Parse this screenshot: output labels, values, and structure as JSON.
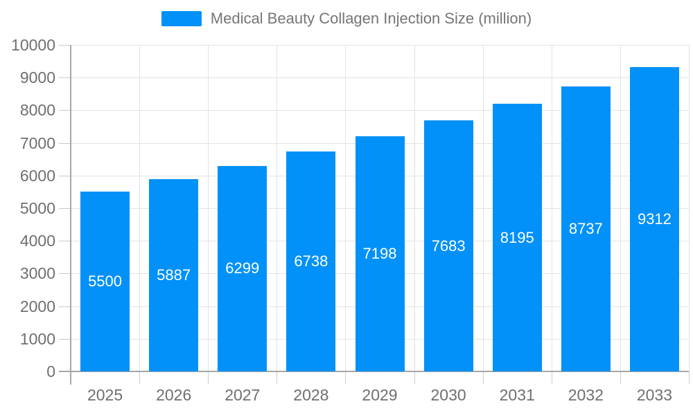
{
  "legend": {
    "label": "Medical Beauty Collagen Injection Size (million)"
  },
  "colors": {
    "bar": "#0291f8",
    "grid": "#e3e3e3",
    "axis": "#a6a6a6",
    "axis_tick": "#c9c9c9",
    "axis_label": "#6f6f6f",
    "legend_text": "#757575",
    "value_label": "#ffffff",
    "background": "#ffffff"
  },
  "chart_data": {
    "type": "bar",
    "title": "Medical Beauty Collagen Injection Size (million)",
    "series_name": "Medical Beauty Collagen Injection Size (million)",
    "categories": [
      "2025",
      "2026",
      "2027",
      "2028",
      "2029",
      "2030",
      "2031",
      "2032",
      "2033"
    ],
    "values": [
      5500,
      5887,
      6299,
      6738,
      7198,
      7683,
      8195,
      8737,
      9312
    ],
    "xlabel": "",
    "ylabel": "",
    "ylim": [
      0,
      10000
    ],
    "ytick_step": 1000,
    "ytick_labels": [
      "0",
      "1000",
      "2000",
      "3000",
      "4000",
      "5000",
      "6000",
      "7000",
      "8000",
      "9000",
      "10000"
    ],
    "grid": true,
    "legend_position": "top",
    "value_labels": "inside-center"
  }
}
